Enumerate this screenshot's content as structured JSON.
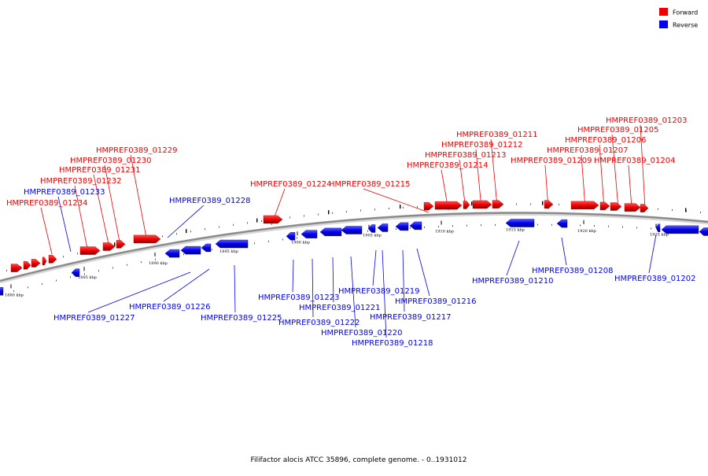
{
  "caption": "Filifactor alocis ATCC 35896, complete genome. - 0..1931012",
  "legend": [
    {
      "label": "Forward",
      "color": "#ee0000"
    },
    {
      "label": "Reverse",
      "color": "#0000ee"
    }
  ],
  "colors": {
    "forward": "#ee0000",
    "reverse": "#0000ee",
    "backbone": "#888888"
  },
  "ticks": [
    "1880 kbp",
    "1885 kbp",
    "1890 kbp",
    "1895 kbp",
    "1900 kbp",
    "1905 kbp",
    "1910 kbp",
    "1915 kbp",
    "1920 kbp",
    "1925 kbp"
  ],
  "genes": [
    {
      "id": "HMPREF0389_01234",
      "strand": "forward"
    },
    {
      "id": "HMPREF0389_01233",
      "strand": "reverse"
    },
    {
      "id": "HMPREF0389_01232",
      "strand": "forward"
    },
    {
      "id": "HMPREF0389_01231",
      "strand": "forward"
    },
    {
      "id": "HMPREF0389_01230",
      "strand": "forward"
    },
    {
      "id": "HMPREF0389_01229",
      "strand": "forward"
    },
    {
      "id": "HMPREF0389_01228",
      "strand": "reverse"
    },
    {
      "id": "HMPREF0389_01227",
      "strand": "reverse"
    },
    {
      "id": "HMPREF0389_01226",
      "strand": "reverse"
    },
    {
      "id": "HMPREF0389_01225",
      "strand": "reverse"
    },
    {
      "id": "HMPREF0389_01224",
      "strand": "forward"
    },
    {
      "id": "HMPREF0389_01223",
      "strand": "reverse"
    },
    {
      "id": "HMPREF0389_01222",
      "strand": "reverse"
    },
    {
      "id": "HMPREF0389_01221",
      "strand": "reverse"
    },
    {
      "id": "HMPREF0389_01220",
      "strand": "reverse"
    },
    {
      "id": "HMPREF0389_01219",
      "strand": "reverse"
    },
    {
      "id": "HMPREF0389_01218",
      "strand": "reverse"
    },
    {
      "id": "HMPREF0389_01217",
      "strand": "reverse"
    },
    {
      "id": "HMPREF0389_01216",
      "strand": "reverse"
    },
    {
      "id": "HMPREF0389_01215",
      "strand": "forward"
    },
    {
      "id": "HMPREF0389_01214",
      "strand": "forward"
    },
    {
      "id": "HMPREF0389_01213",
      "strand": "forward"
    },
    {
      "id": "HMPREF0389_01212",
      "strand": "forward"
    },
    {
      "id": "HMPREF0389_01211",
      "strand": "forward"
    },
    {
      "id": "HMPREF0389_01210",
      "strand": "reverse"
    },
    {
      "id": "HMPREF0389_01209",
      "strand": "forward"
    },
    {
      "id": "HMPREF0389_01208",
      "strand": "reverse"
    },
    {
      "id": "HMPREF0389_01207",
      "strand": "forward"
    },
    {
      "id": "HMPREF0389_01206",
      "strand": "forward"
    },
    {
      "id": "HMPREF0389_01205",
      "strand": "forward"
    },
    {
      "id": "HMPREF0389_01204",
      "strand": "forward"
    },
    {
      "id": "HMPREF0389_01203",
      "strand": "forward"
    },
    {
      "id": "HMPREF0389_01202",
      "strand": "reverse"
    }
  ]
}
